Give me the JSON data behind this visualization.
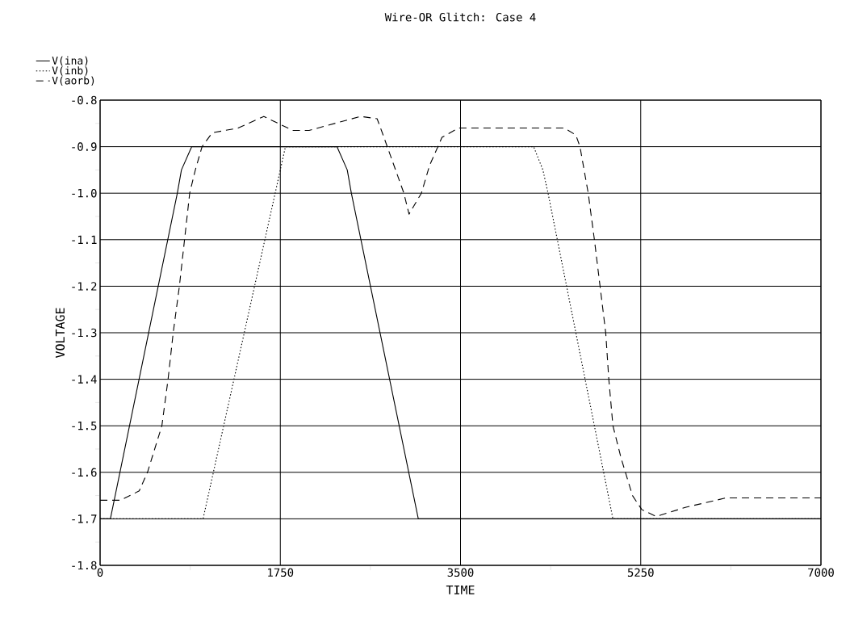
{
  "chart_data": {
    "type": "line",
    "title": "Wire-OR Glitch: Case 4",
    "xlabel": "TIME",
    "ylabel": "VOLTAGE",
    "xlim": [
      0,
      7000
    ],
    "xticks": [
      0,
      1750,
      3500,
      5250,
      7000
    ],
    "ylim": [
      -1.8,
      -0.8
    ],
    "yticks": [
      -1.8,
      -1.7,
      -1.6,
      -1.5,
      -1.4,
      -1.3,
      -1.2,
      -1.1,
      {
        "value": -1.0,
        "label": "-1.0"
      },
      -0.9,
      -0.8
    ],
    "grid": true,
    "legend": "top left",
    "series": [
      {
        "name": "V(ina)",
        "color": "#000000",
        "line_style": "solid",
        "x": [
          0,
          100,
          750,
          790,
          890,
          2300,
          2400,
          2440,
          3090,
          7000
        ],
        "values": [
          -1.7,
          -1.7,
          -1.0,
          -0.95,
          -0.9,
          -0.9,
          -0.95,
          -1.0,
          -1.7,
          -1.7
        ]
      },
      {
        "name": "V(inb)",
        "color": "#000000",
        "line_style": "dotted",
        "x": [
          0,
          1000,
          1700,
          1800,
          4210,
          4300,
          4350,
          4440,
          4980,
          7000
        ],
        "values": [
          -1.7,
          -1.7,
          -1.0,
          -0.9,
          -0.9,
          -0.95,
          -1.0,
          -1.1,
          -1.7,
          -1.7
        ]
      },
      {
        "name": "V(aorb)",
        "color": "#000000",
        "line_style": "dashed",
        "x": [
          0,
          200,
          380,
          460,
          600,
          660,
          710,
          770,
          820,
          870,
          925,
          990,
          1090,
          1340,
          1590,
          1870,
          2030,
          2530,
          2690,
          2740,
          2950,
          3000,
          3120,
          3200,
          3320,
          3480,
          4510,
          4620,
          4660,
          4740,
          4800,
          4910,
          4940,
          4980,
          5060,
          5170,
          5260,
          5400,
          5690,
          6080,
          7000
        ],
        "values": [
          -1.66,
          -1.66,
          -1.64,
          -1.6,
          -1.5,
          -1.4,
          -1.3,
          -1.2,
          -1.1,
          -1.0,
          -0.95,
          -0.9,
          -0.87,
          -0.86,
          -0.835,
          -0.865,
          -0.865,
          -0.835,
          -0.84,
          -0.87,
          -1.0,
          -1.045,
          -1.0,
          -0.94,
          -0.88,
          -0.86,
          -0.86,
          -0.875,
          -0.9,
          -1.0,
          -1.1,
          -1.3,
          -1.4,
          -1.5,
          -1.57,
          -1.65,
          -1.68,
          -1.695,
          -1.675,
          -1.655,
          -1.655
        ]
      }
    ]
  }
}
